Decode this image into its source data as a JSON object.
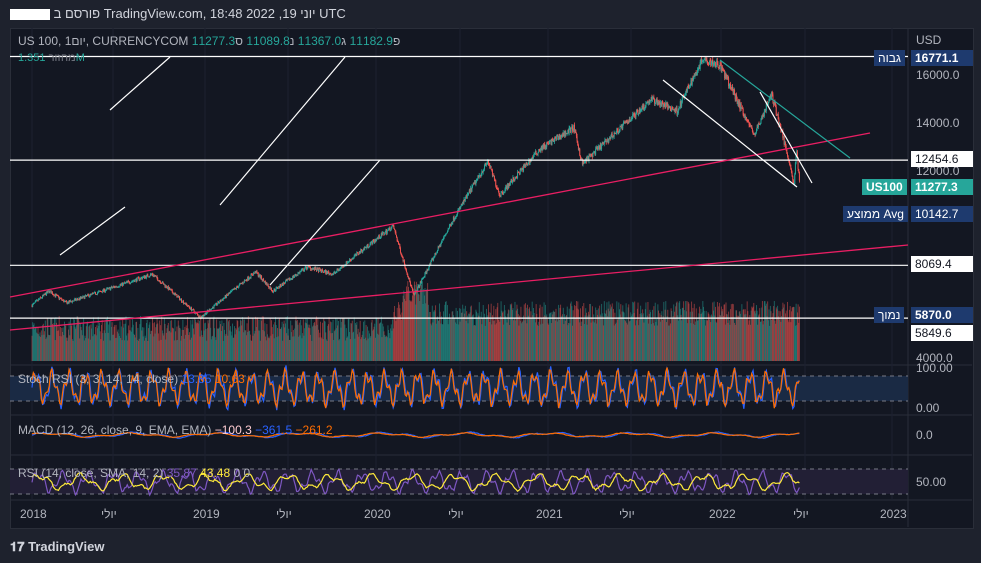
{
  "header": {
    "title": "פורסם ב TradingView.com, 18:48 2022 ,19 יוני UTC"
  },
  "legend": {
    "symbol": "US 100, 1יום, CURRENCYCOM",
    "o_label": "פ",
    "open": "11182.9",
    "h_label": "ג",
    "high": "11367.0",
    "l_label": "נ",
    "low": "11089.8",
    "c_label": "ס",
    "close": "11277.3",
    "vol_label": "מחזור",
    "volume": "1.351M"
  },
  "axis": {
    "currency": "USD",
    "ticks": [
      "16000.0",
      "14000.0",
      "12000.0",
      "4000.0"
    ],
    "stoch_ticks": [
      "100.00",
      "0.00"
    ],
    "macd_ticks": [
      "0.0"
    ],
    "rsi_ticks": [
      "50.00"
    ]
  },
  "tags": {
    "high_label": "גבוה",
    "high": "16771.1",
    "level1": "12454.6",
    "symbol": "US100",
    "last": "11277.3",
    "avg_label": "ממוצע Avg",
    "avg": "10142.7",
    "level2": "8069.4",
    "low_label": "נמוך",
    "low": "5870.0",
    "level3": "5849.6"
  },
  "indicators": {
    "stoch": {
      "label": "Stoch RSI (3, 3, 14, 14, close)",
      "k": "13.85",
      "d": "10.63"
    },
    "macd": {
      "label": "MACD (12, 26, close, 9, EMA, EMA)",
      "hist": "−100.3",
      "macd": "−361.5",
      "signal": "−261.2"
    },
    "rsi": {
      "label": "RSI (14, close, SMA, 14, 2)",
      "rsi": "35.87",
      "ma": "43.48",
      "a": "0",
      "b": "0"
    }
  },
  "time_axis": [
    "2018",
    "יולי",
    "2019",
    "יולי",
    "2020",
    "יולי",
    "2021",
    "יולי",
    "2022",
    "יולי",
    "2023"
  ],
  "brand": "TradingView",
  "colors": {
    "up": "#26a69a",
    "down": "#ef5350",
    "pink": "#e91e63",
    "navy": "#1e3a6e"
  },
  "price_path": [
    [
      2018.0,
      6400
    ],
    [
      2018.1,
      7000
    ],
    [
      2018.2,
      6500
    ],
    [
      2018.45,
      7100
    ],
    [
      2018.7,
      7700
    ],
    [
      2018.98,
      5900
    ],
    [
      2019.3,
      7800
    ],
    [
      2019.4,
      7000
    ],
    [
      2019.6,
      8000
    ],
    [
      2019.75,
      7700
    ],
    [
      2019.9,
      8600
    ],
    [
      2020.1,
      9700
    ],
    [
      2020.22,
      6800
    ],
    [
      2020.45,
      10000
    ],
    [
      2020.65,
      12400
    ],
    [
      2020.72,
      11000
    ],
    [
      2020.95,
      12900
    ],
    [
      2021.15,
      13800
    ],
    [
      2021.2,
      12300
    ],
    [
      2021.6,
      15000
    ],
    [
      2021.75,
      14500
    ],
    [
      2021.9,
      16700
    ],
    [
      2022.0,
      16400
    ],
    [
      2022.2,
      13500
    ],
    [
      2022.3,
      15200
    ],
    [
      2022.4,
      12500
    ],
    [
      2022.43,
      11400
    ],
    [
      2022.445,
      12900
    ],
    [
      2022.465,
      11277
    ]
  ]
}
